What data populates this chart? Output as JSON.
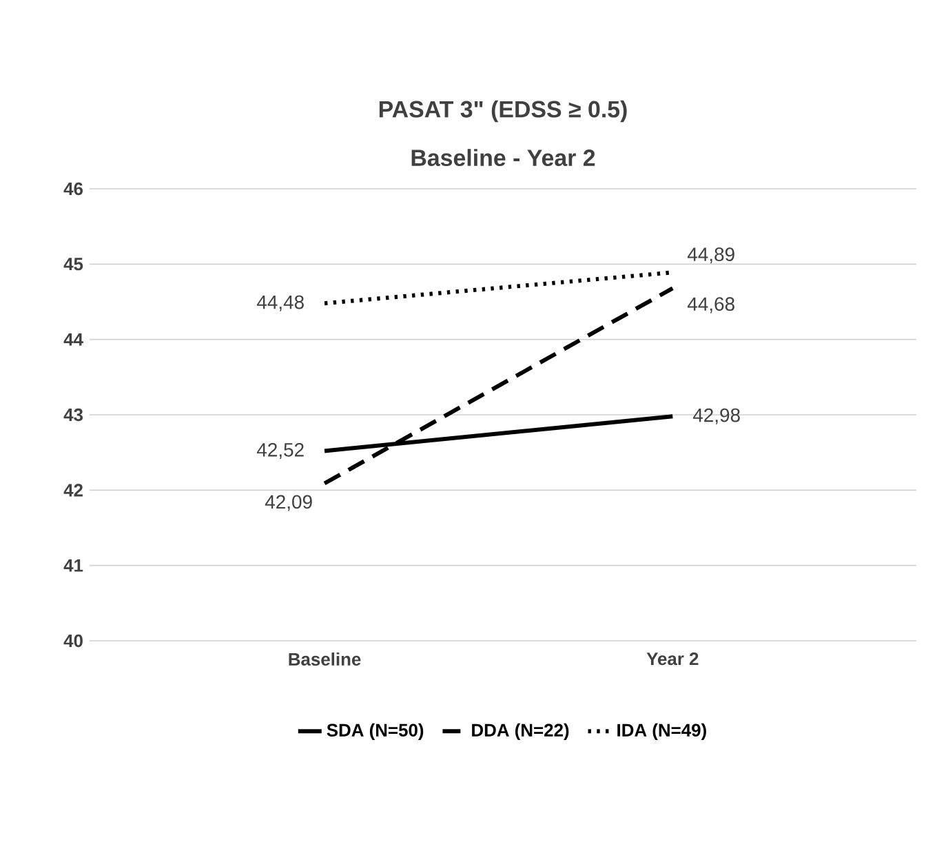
{
  "chart_data": {
    "type": "line",
    "title": "PASAT 3\" (EDSS ≥ 0.5)",
    "subtitle": "Baseline - Year 2",
    "categories": [
      "Baseline",
      "Year 2"
    ],
    "series": [
      {
        "name": "SDA (N=50)",
        "color": "#000000",
        "line_style": "solid",
        "values": [
          42.52,
          42.98
        ],
        "value_labels": [
          "42,52",
          "42,98"
        ]
      },
      {
        "name": "DDA (N=22)",
        "color": "#000000",
        "line_style": "dashed",
        "values": [
          42.09,
          44.68
        ],
        "value_labels": [
          "42,09",
          "44,68"
        ]
      },
      {
        "name": "IDA (N=49)",
        "color": "#000000",
        "line_style": "dotted",
        "values": [
          44.48,
          44.89
        ],
        "value_labels": [
          "44,48",
          "44,89"
        ]
      }
    ],
    "ylim": [
      40,
      46
    ],
    "yticks": [
      40,
      41,
      42,
      43,
      44,
      45,
      46
    ],
    "grid": "y",
    "legend": "bottom",
    "marker": "none"
  }
}
